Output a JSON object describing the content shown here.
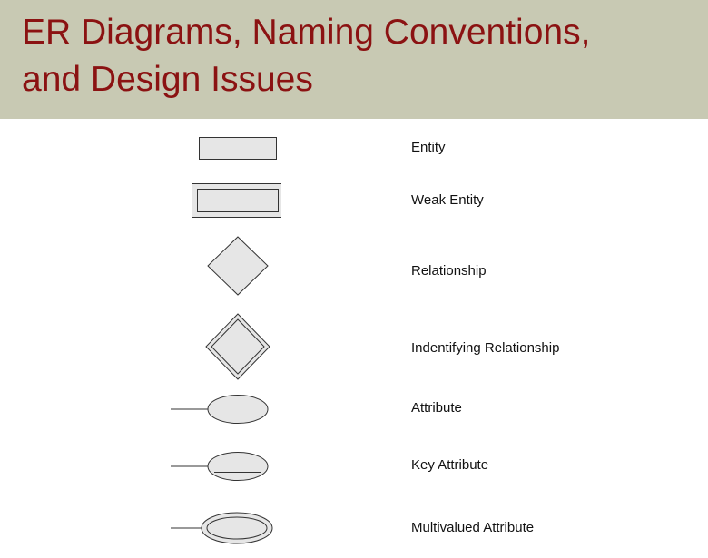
{
  "title": {
    "line1": "ER Diagrams, Naming Conventions,",
    "line2": "and Design Issues"
  },
  "colors": {
    "header_background": "#c8c9b3",
    "title_text": "#8b1212",
    "shape_fill": "#e6e6e6",
    "shape_stroke": "#333333"
  },
  "legend": [
    {
      "symbol": "entity-rectangle",
      "label": "Entity"
    },
    {
      "symbol": "weak-entity-double-rectangle",
      "label": "Weak Entity"
    },
    {
      "symbol": "relationship-diamond",
      "label": "Relationship"
    },
    {
      "symbol": "identifying-relationship-double-diamond",
      "label": "Indentifying Relationship"
    },
    {
      "symbol": "attribute-oval",
      "label": "Attribute"
    },
    {
      "symbol": "key-attribute-underlined-oval",
      "label": "Key Attribute"
    },
    {
      "symbol": "multivalued-attribute-double-oval",
      "label": "Multivalued Attribute"
    }
  ]
}
